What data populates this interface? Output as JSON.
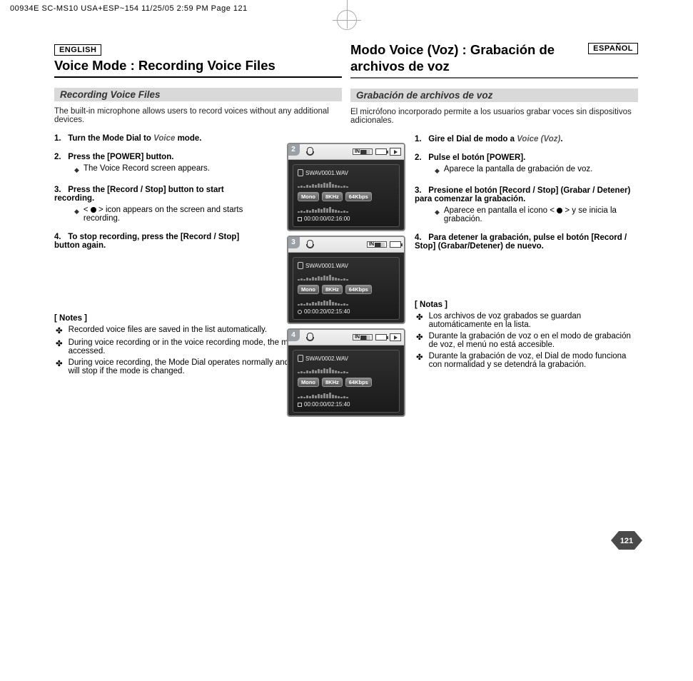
{
  "crop_header": "00934E SC-MS10 USA+ESP~154  11/25/05 2:59 PM  Page 121",
  "english": {
    "lang_tag": "ENGLISH",
    "title": "Voice Mode : Recording Voice Files",
    "sect": "Recording Voice Files",
    "intro": "The built-in microphone allows users to record voices without any additional devices.",
    "steps": [
      {
        "n": "1.",
        "t_pre": "Turn the Mode Dial to ",
        "t_em": "Voice",
        "t_post": " mode."
      },
      {
        "n": "2.",
        "t": "Press the [POWER] button.",
        "sub": "The Voice Record screen appears."
      },
      {
        "n": "3.",
        "t": "Press the [Record / Stop] button to start recording.",
        "sub_pre": "< ",
        "sub_post": " > icon appears on the screen and starts recording."
      },
      {
        "n": "4.",
        "t": "To stop recording, press the [Record / Stop] button again."
      }
    ],
    "notes_h": "[ Notes ]",
    "notes": [
      "Recorded voice files are saved in the list automatically.",
      "During voice recording or in the voice recording mode, the menu is not accessed.",
      "During voice recording, the Mode Dial operates normally and the recording will stop if the mode is changed."
    ]
  },
  "spanish": {
    "lang_tag": "ESPAÑOL",
    "title": "Modo Voice (Voz) : Grabación de archivos de voz",
    "sect": "Grabación de archivos de voz",
    "intro": "El micrófono incorporado permite a los usuarios grabar voces sin dispositivos adicionales.",
    "steps": [
      {
        "n": "1.",
        "t_pre": "Gire el Dial de modo a ",
        "t_em": "Voice (Voz)",
        "t_post": "."
      },
      {
        "n": "2.",
        "t": "Pulse el botón [POWER].",
        "sub": "Aparece la pantalla de grabación de voz."
      },
      {
        "n": "3.",
        "t": "Presione el botón [Record / Stop] (Grabar / Detener) para comenzar la grabación.",
        "sub_pre": "Aparece en pantalla el icono < ",
        "sub_post": " > y se inicia la grabación."
      },
      {
        "n": "4.",
        "t": "Para detener la grabación, pulse el botón [Record / Stop] (Grabar/Detener) de nuevo."
      }
    ],
    "notes_h": "[ Notas ]",
    "notes": [
      "Los archivos de voz grabados se guardan automáticamente en la lista.",
      "Durante la grabación de voz o en el modo de grabación de voz, el menú no está accesible.",
      "Durante la grabación de voz, el Dial de modo funciona con normalidad y se detendrá la grabación."
    ]
  },
  "device": {
    "in_label": "IN",
    "cards": [
      {
        "badge": "2",
        "file": "SWAV0001.WAV",
        "mono": "Mono",
        "khz": "8KHz",
        "kbps": "64Kbps",
        "time": "00:00:00/02:16:00",
        "icon": "stop",
        "showPlay": true
      },
      {
        "badge": "3",
        "file": "SWAV0001.WAV",
        "mono": "Mono",
        "khz": "8KHz",
        "kbps": "64Kbps",
        "time": "00:00:20/02:15:40",
        "icon": "rec",
        "showPlay": false
      },
      {
        "badge": "4",
        "file": "SWAV0002.WAV",
        "mono": "Mono",
        "khz": "8KHz",
        "kbps": "64Kbps",
        "time": "00:00:00/02:15:40",
        "icon": "stop",
        "showPlay": true
      }
    ]
  },
  "page_number": "121",
  "colors": {
    "section_bg": "#d9d9d9",
    "device_body": "#2a2a2a"
  }
}
